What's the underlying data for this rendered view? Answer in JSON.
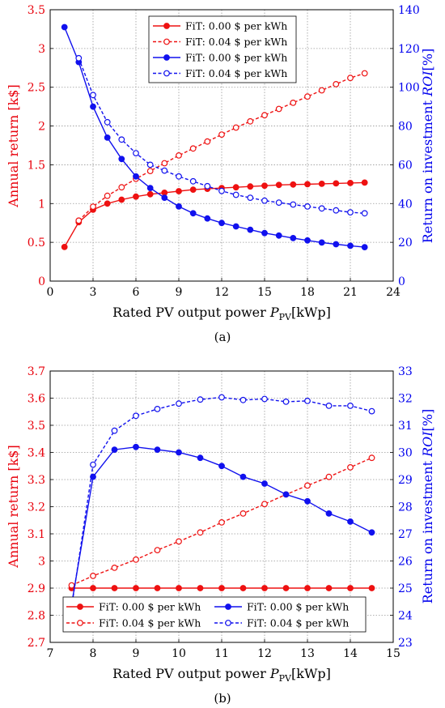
{
  "figure": {
    "caption_a": "(a)",
    "caption_b": "(b)"
  },
  "colors": {
    "left_axis": "#e8000b",
    "right_axis": "#0000ee",
    "red_series": "#ee1111",
    "blue_series": "#1111ee"
  },
  "chart_data": [
    {
      "type": "line",
      "xlabel": "Rated PV output power P_PV [kWp]",
      "xlabel_main": "Rated PV output power ",
      "xlabel_sym": "P",
      "xlabel_sub": "PV",
      "xlabel_unit": "[kWp]",
      "ylabel_left": "Annual return [k$]",
      "ylabel_right_main": "Return on investment ",
      "ylabel_right_sym": "ROI",
      "ylabel_right_unit": "[%]",
      "xlim": [
        0,
        24
      ],
      "ylim_left": [
        0,
        3.5
      ],
      "ylim_right": [
        0,
        140
      ],
      "xticks": [
        "0",
        "3",
        "6",
        "9",
        "12",
        "15",
        "18",
        "21",
        "24"
      ],
      "yticks_left": [
        "0",
        "0.5",
        "1",
        "1.5",
        "2",
        "2.5",
        "3",
        "3.5"
      ],
      "yticks_right": [
        "0",
        "20",
        "40",
        "60",
        "80",
        "100",
        "120",
        "140"
      ],
      "grid": true,
      "legend_position": "top-center",
      "series": [
        {
          "name": "FiT: 0.00 $ per kWh",
          "axis": "left",
          "color": "#ee1111",
          "dashed": false,
          "filled": true,
          "x": [
            1,
            2,
            3,
            4,
            5,
            6,
            7,
            8,
            9,
            10,
            11,
            12,
            13,
            14,
            15,
            16,
            17,
            18,
            19,
            20,
            21,
            22
          ],
          "y": [
            0.44,
            0.76,
            0.92,
            1.0,
            1.05,
            1.09,
            1.12,
            1.14,
            1.16,
            1.18,
            1.19,
            1.2,
            1.21,
            1.22,
            1.23,
            1.24,
            1.245,
            1.25,
            1.255,
            1.26,
            1.265,
            1.27
          ]
        },
        {
          "name": "FiT: 0.04 $ per kWh",
          "axis": "left",
          "color": "#ee1111",
          "dashed": true,
          "filled": false,
          "x": [
            2,
            3,
            4,
            5,
            6,
            7,
            8,
            9,
            10,
            11,
            12,
            13,
            14,
            15,
            16,
            17,
            18,
            19,
            20,
            21,
            22
          ],
          "y": [
            0.78,
            0.96,
            1.1,
            1.21,
            1.32,
            1.42,
            1.52,
            1.62,
            1.71,
            1.8,
            1.89,
            1.98,
            2.06,
            2.14,
            2.22,
            2.3,
            2.38,
            2.46,
            2.54,
            2.62,
            2.68
          ]
        },
        {
          "name": "FiT: 0.00 $ per kWh",
          "axis": "right",
          "color": "#1111ee",
          "dashed": false,
          "filled": true,
          "x": [
            1,
            2,
            3,
            4,
            5,
            6,
            7,
            8,
            9,
            10,
            11,
            12,
            13,
            14,
            15,
            16,
            17,
            18,
            19,
            20,
            21,
            22
          ],
          "y": [
            131,
            113,
            90,
            74,
            63,
            54,
            48,
            43,
            38.5,
            35,
            32.3,
            30,
            28.2,
            26.5,
            24.8,
            23.5,
            22.2,
            21,
            19.9,
            19,
            18.2,
            17.5
          ]
        },
        {
          "name": "FiT: 0.04 $ per kWh",
          "axis": "right",
          "color": "#1111ee",
          "dashed": true,
          "filled": false,
          "x": [
            2,
            3,
            4,
            5,
            6,
            7,
            8,
            9,
            10,
            11,
            12,
            13,
            14,
            15,
            16,
            17,
            18,
            19,
            20,
            21,
            22
          ],
          "y": [
            115,
            96,
            82,
            73,
            66,
            60,
            57,
            54,
            51.5,
            49,
            46.5,
            44.5,
            43,
            41.5,
            40.5,
            39.5,
            38.5,
            37.5,
            36.5,
            35.5,
            35
          ]
        }
      ]
    },
    {
      "type": "line",
      "xlabel": "Rated PV output power P_PV [kWp]",
      "xlabel_main": "Rated PV output power ",
      "xlabel_sym": "P",
      "xlabel_sub": "PV",
      "xlabel_unit": "[kWp]",
      "ylabel_left": "Annual return [k$]",
      "ylabel_right_main": "Return on investment ",
      "ylabel_right_sym": "ROI",
      "ylabel_right_unit": "[%]",
      "xlim": [
        7,
        15
      ],
      "ylim_left": [
        2.7,
        3.7
      ],
      "ylim_right": [
        23,
        33
      ],
      "xticks": [
        "7",
        "8",
        "9",
        "10",
        "11",
        "12",
        "13",
        "14",
        "15"
      ],
      "yticks_left": [
        "2.7",
        "2.8",
        "2.9",
        "3",
        "3.1",
        "3.2",
        "3.3",
        "3.4",
        "3.5",
        "3.6",
        "3.7"
      ],
      "yticks_right": [
        "23",
        "24",
        "25",
        "26",
        "27",
        "28",
        "29",
        "30",
        "31",
        "32",
        "33"
      ],
      "grid": true,
      "legend_position": "bottom",
      "series": [
        {
          "name": "FiT: 0.00 $ per kWh",
          "axis": "left",
          "color": "#ee1111",
          "dashed": false,
          "filled": true,
          "x": [
            7.5,
            8,
            8.5,
            9,
            9.5,
            10,
            10.5,
            11,
            11.5,
            12,
            12.5,
            13,
            13.5,
            14,
            14.5
          ],
          "y": [
            2.9,
            2.9,
            2.9,
            2.9,
            2.9,
            2.9,
            2.9,
            2.9,
            2.9,
            2.9,
            2.9,
            2.9,
            2.9,
            2.9,
            2.9
          ]
        },
        {
          "name": "FiT: 0.04 $ per kWh",
          "axis": "left",
          "color": "#ee1111",
          "dashed": true,
          "filled": false,
          "x": [
            7.5,
            8,
            8.5,
            9,
            9.5,
            10,
            10.5,
            11,
            11.5,
            12,
            12.5,
            13,
            13.5,
            14,
            14.5
          ],
          "y": [
            2.91,
            2.945,
            2.975,
            3.005,
            3.04,
            3.072,
            3.105,
            3.142,
            3.175,
            3.21,
            3.245,
            3.278,
            3.31,
            3.345,
            3.38
          ]
        },
        {
          "name": "FiT: 0.00 $ per kWh",
          "axis": "right",
          "color": "#1111ee",
          "dashed": false,
          "filled": true,
          "x": [
            7.5,
            8,
            8.5,
            9,
            9.5,
            10,
            10.5,
            11,
            11.5,
            12,
            12.5,
            13,
            13.5,
            14,
            14.5
          ],
          "y": [
            24.4,
            29.1,
            30.1,
            30.2,
            30.1,
            30.0,
            29.8,
            29.5,
            29.1,
            28.85,
            28.45,
            28.2,
            27.75,
            27.45,
            27.05
          ]
        },
        {
          "name": "FiT: 0.04 $ per kWh",
          "axis": "right",
          "color": "#1111ee",
          "dashed": true,
          "filled": false,
          "x": [
            7.5,
            8,
            8.5,
            9,
            9.5,
            10,
            10.5,
            11,
            11.5,
            12,
            12.5,
            13,
            13.5,
            14,
            14.5
          ],
          "y": [
            24.3,
            29.55,
            30.8,
            31.35,
            31.6,
            31.8,
            31.95,
            32.03,
            31.93,
            31.97,
            31.87,
            31.9,
            31.72,
            31.72,
            31.52
          ]
        }
      ]
    }
  ]
}
